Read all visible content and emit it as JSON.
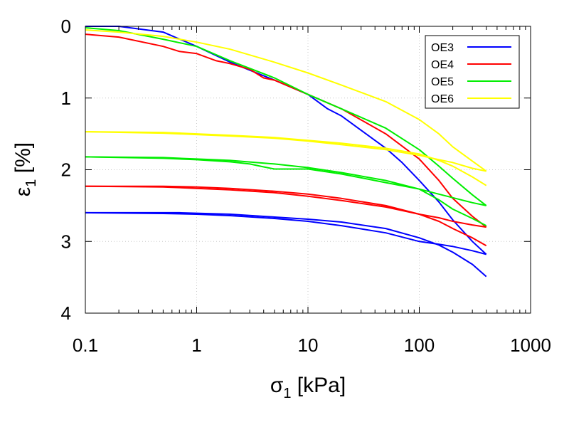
{
  "chart_data": {
    "type": "line",
    "title": "",
    "xlabel": {
      "symbol": "σ",
      "subscript": "1",
      "rest": " [kPa]"
    },
    "ylabel": {
      "symbol": "ε",
      "subscript": "1",
      "rest": " [%]"
    },
    "xscale": "log",
    "xlim": [
      0.1,
      1000
    ],
    "ylim": [
      0,
      4
    ],
    "y_inverted": true,
    "grid": true,
    "legend_position": "top-right",
    "x_ticks": [
      0.1,
      1,
      10,
      100,
      1000
    ],
    "x_tick_labels": [
      "0.1",
      "1",
      "10",
      "100",
      "1000"
    ],
    "y_ticks": [
      0,
      1,
      2,
      3,
      4
    ],
    "y_tick_labels": [
      "0",
      "1",
      "2",
      "3",
      "4"
    ],
    "series": [
      {
        "name": "OE3",
        "color": "#0000ff",
        "segments": [
          [
            [
              0.1,
              0.0
            ],
            [
              0.2,
              0.0
            ],
            [
              0.5,
              0.08
            ],
            [
              1,
              0.28
            ],
            [
              2,
              0.5
            ],
            [
              5,
              0.75
            ],
            [
              10,
              0.95
            ],
            [
              15,
              1.15
            ],
            [
              20,
              1.25
            ],
            [
              30,
              1.45
            ],
            [
              50,
              1.7
            ],
            [
              70,
              1.9
            ],
            [
              100,
              2.15
            ],
            [
              150,
              2.45
            ],
            [
              200,
              2.7
            ],
            [
              300,
              3.0
            ],
            [
              400,
              3.18
            ]
          ],
          [
            [
              400,
              3.18
            ],
            [
              300,
              3.13
            ],
            [
              200,
              3.07
            ],
            [
              150,
              3.04
            ],
            [
              100,
              3.0
            ],
            [
              50,
              2.88
            ],
            [
              20,
              2.78
            ],
            [
              10,
              2.72
            ],
            [
              5,
              2.68
            ],
            [
              2,
              2.64
            ],
            [
              1,
              2.62
            ],
            [
              0.5,
              2.61
            ],
            [
              0.1,
              2.6
            ]
          ],
          [
            [
              0.1,
              2.6
            ],
            [
              0.7,
              2.6
            ],
            [
              2,
              2.62
            ],
            [
              5,
              2.66
            ],
            [
              10,
              2.69
            ],
            [
              20,
              2.73
            ],
            [
              50,
              2.82
            ],
            [
              100,
              2.95
            ],
            [
              150,
              3.05
            ],
            [
              200,
              3.15
            ],
            [
              300,
              3.32
            ],
            [
              400,
              3.49
            ]
          ]
        ]
      },
      {
        "name": "OE4",
        "color": "#ff0000",
        "segments": [
          [
            [
              0.1,
              0.11
            ],
            [
              0.2,
              0.15
            ],
            [
              0.5,
              0.28
            ],
            [
              0.7,
              0.35
            ],
            [
              1,
              0.38
            ],
            [
              1.5,
              0.48
            ],
            [
              2,
              0.52
            ],
            [
              3,
              0.6
            ],
            [
              4,
              0.72
            ],
            [
              5,
              0.75
            ],
            [
              10,
              0.95
            ],
            [
              20,
              1.15
            ],
            [
              50,
              1.5
            ],
            [
              100,
              1.85
            ],
            [
              150,
              2.15
            ],
            [
              200,
              2.4
            ],
            [
              300,
              2.65
            ],
            [
              400,
              2.8
            ]
          ],
          [
            [
              400,
              2.8
            ],
            [
              300,
              2.77
            ],
            [
              200,
              2.72
            ],
            [
              150,
              2.67
            ],
            [
              100,
              2.62
            ],
            [
              50,
              2.52
            ],
            [
              20,
              2.43
            ],
            [
              10,
              2.37
            ],
            [
              5,
              2.32
            ],
            [
              2,
              2.28
            ],
            [
              1,
              2.26
            ],
            [
              0.5,
              2.24
            ],
            [
              0.1,
              2.23
            ]
          ],
          [
            [
              0.1,
              2.23
            ],
            [
              0.5,
              2.23
            ],
            [
              1,
              2.24
            ],
            [
              2,
              2.26
            ],
            [
              5,
              2.3
            ],
            [
              10,
              2.34
            ],
            [
              20,
              2.4
            ],
            [
              50,
              2.5
            ],
            [
              100,
              2.62
            ],
            [
              150,
              2.72
            ],
            [
              200,
              2.82
            ],
            [
              300,
              2.95
            ],
            [
              400,
              3.06
            ]
          ]
        ]
      },
      {
        "name": "OE5",
        "color": "#00ee00",
        "segments": [
          [
            [
              0.1,
              0.02
            ],
            [
              0.2,
              0.06
            ],
            [
              0.5,
              0.18
            ],
            [
              1,
              0.28
            ],
            [
              2,
              0.48
            ],
            [
              5,
              0.72
            ],
            [
              10,
              0.95
            ],
            [
              20,
              1.15
            ],
            [
              50,
              1.42
            ],
            [
              100,
              1.72
            ],
            [
              150,
              1.95
            ],
            [
              200,
              2.12
            ],
            [
              300,
              2.35
            ],
            [
              400,
              2.5
            ]
          ],
          [
            [
              400,
              2.5
            ],
            [
              300,
              2.46
            ],
            [
              200,
              2.39
            ],
            [
              150,
              2.34
            ],
            [
              100,
              2.27
            ],
            [
              50,
              2.18
            ],
            [
              20,
              2.06
            ],
            [
              10,
              1.99
            ],
            [
              5,
              1.99
            ],
            [
              4,
              1.96
            ],
            [
              3,
              1.92
            ],
            [
              2,
              1.89
            ],
            [
              1,
              1.86
            ],
            [
              0.5,
              1.84
            ],
            [
              0.1,
              1.82
            ]
          ],
          [
            [
              0.1,
              1.82
            ],
            [
              0.5,
              1.83
            ],
            [
              1,
              1.85
            ],
            [
              2,
              1.87
            ],
            [
              5,
              1.92
            ],
            [
              10,
              1.97
            ],
            [
              20,
              2.04
            ],
            [
              50,
              2.15
            ],
            [
              100,
              2.27
            ],
            [
              150,
              2.42
            ],
            [
              200,
              2.55
            ],
            [
              300,
              2.68
            ],
            [
              400,
              2.78
            ]
          ]
        ]
      },
      {
        "name": "OE6",
        "color": "#ffff00",
        "segments": [
          [
            [
              0.1,
              0.05
            ],
            [
              0.2,
              0.08
            ],
            [
              0.5,
              0.14
            ],
            [
              1,
              0.22
            ],
            [
              2,
              0.32
            ],
            [
              5,
              0.5
            ],
            [
              10,
              0.65
            ],
            [
              20,
              0.82
            ],
            [
              50,
              1.05
            ],
            [
              100,
              1.3
            ],
            [
              150,
              1.5
            ],
            [
              200,
              1.68
            ],
            [
              300,
              1.88
            ],
            [
              400,
              2.02
            ]
          ],
          [
            [
              400,
              2.02
            ],
            [
              300,
              1.98
            ],
            [
              200,
              1.9
            ],
            [
              150,
              1.86
            ],
            [
              100,
              1.8
            ],
            [
              50,
              1.72
            ],
            [
              20,
              1.65
            ],
            [
              10,
              1.6
            ],
            [
              5,
              1.56
            ],
            [
              2,
              1.53
            ],
            [
              1,
              1.51
            ],
            [
              0.5,
              1.49
            ],
            [
              0.1,
              1.47
            ]
          ],
          [
            [
              0.1,
              1.47
            ],
            [
              0.5,
              1.48
            ],
            [
              1,
              1.5
            ],
            [
              2,
              1.52
            ],
            [
              5,
              1.55
            ],
            [
              10,
              1.59
            ],
            [
              20,
              1.63
            ],
            [
              50,
              1.7
            ],
            [
              100,
              1.78
            ],
            [
              150,
              1.87
            ],
            [
              200,
              1.95
            ],
            [
              300,
              2.1
            ],
            [
              400,
              2.22
            ]
          ]
        ]
      }
    ]
  }
}
